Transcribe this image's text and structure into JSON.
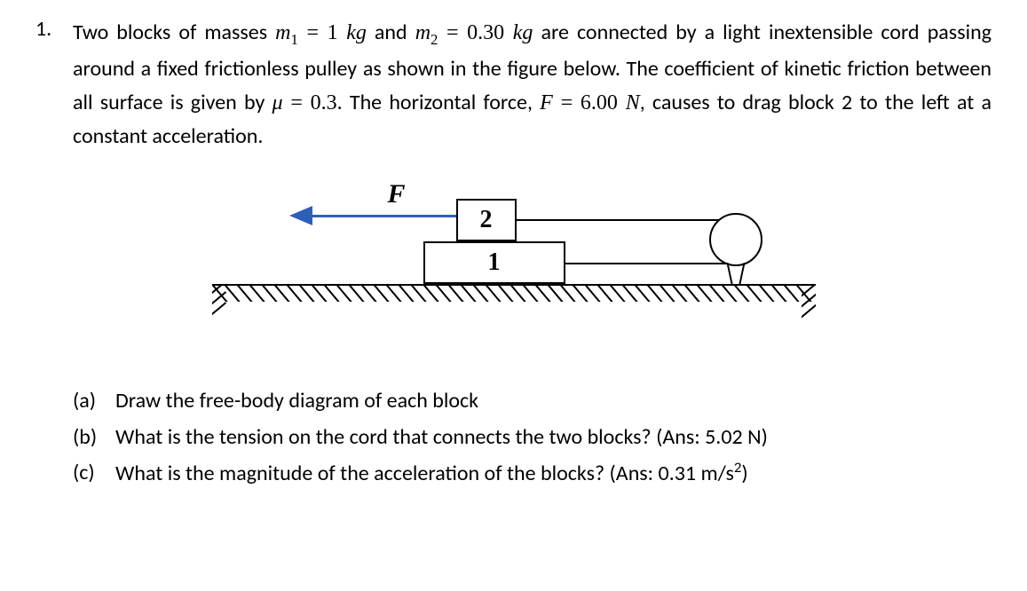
{
  "problem": {
    "number": "1.",
    "sentence_parts": {
      "t1": "Two blocks of masses ",
      "m1_sym": "m",
      "m1_sub": "1",
      "eq": " = ",
      "m1_val": "1 ",
      "m1_unit": "kg",
      "and": " and ",
      "m2_sym": "m",
      "m2_sub": "2",
      "m2_val": "0.30 ",
      "m2_unit": "kg",
      "t2": " are connected by a light inextensible cord passing around a fixed frictionless pulley as shown in the figure below. The coefficient of kinetic friction between all surface is given by ",
      "mu": "μ",
      "mu_val": "0.3",
      "t3": ". The horizontal force, ",
      "F_sym": "F",
      "F_val": "6.00 ",
      "F_unit": "N",
      "t4": ", causes to drag block 2 to the left at a constant acceleration."
    }
  },
  "figure": {
    "F_label": "F",
    "block2_label": "2",
    "block1_label": "1",
    "arrow_color": "#2e5fb7",
    "block_border": "#000000",
    "ground_color": "#000000",
    "hatch_count": 48
  },
  "parts": {
    "a": {
      "label": "(a)",
      "text": "Draw the free-body diagram of each block"
    },
    "b": {
      "label": "(b)",
      "text": "What is the tension on the cord that connects the two blocks? (Ans: ",
      "ans": "5.02 N",
      "close": ")"
    },
    "c": {
      "label": "(c)",
      "text": "What is the magnitude of the acceleration of the blocks? (Ans: ",
      "ans_num": "0.31 m/s",
      "ans_sup": "2",
      "close": ")"
    }
  }
}
